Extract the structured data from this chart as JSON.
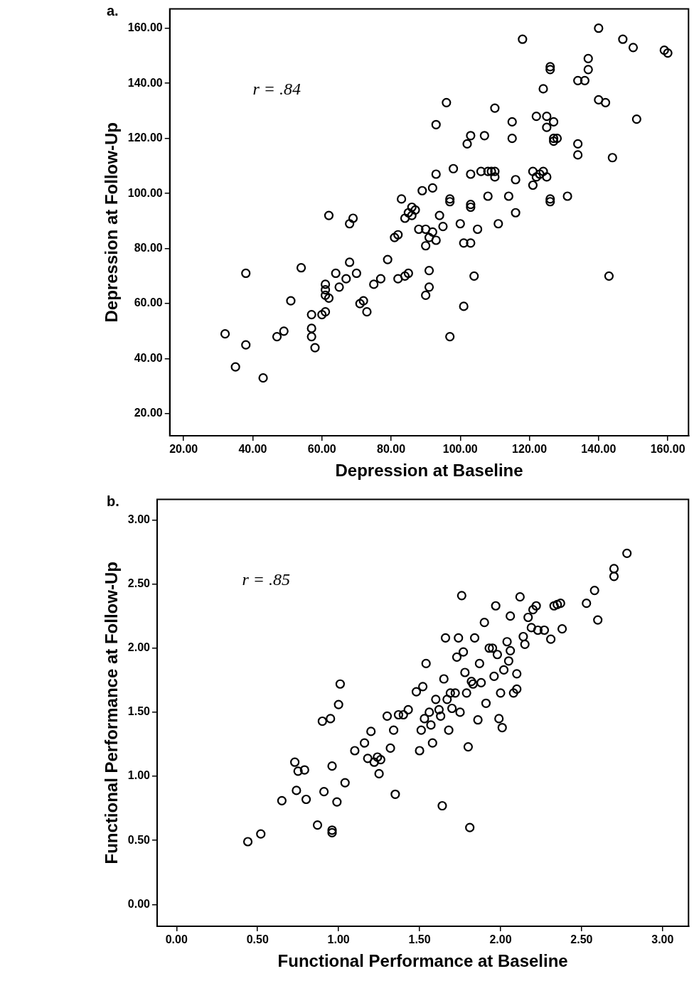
{
  "chart_data": [
    {
      "type": "scatter",
      "title": "a.",
      "xlabel": "Depression at Baseline",
      "ylabel": "Depression at Follow-Up",
      "annotations": [
        "r = .84"
      ],
      "grid": false,
      "legend": false,
      "marker": "circle",
      "xlim": [
        16,
        166
      ],
      "ylim": [
        12,
        167
      ],
      "xticks": [
        {
          "value": 20,
          "label": "20.00"
        },
        {
          "value": 40,
          "label": "40.00"
        },
        {
          "value": 60,
          "label": "60.00"
        },
        {
          "value": 80,
          "label": "80.00"
        },
        {
          "value": 100,
          "label": "100.00"
        },
        {
          "value": 120,
          "label": "120.00"
        },
        {
          "value": 140,
          "label": "140.00"
        },
        {
          "value": 160,
          "label": "160.00"
        }
      ],
      "yticks": [
        {
          "value": 20,
          "label": "20.00"
        },
        {
          "value": 40,
          "label": "40.00"
        },
        {
          "value": 60,
          "label": "60.00"
        },
        {
          "value": 80,
          "label": "80.00"
        },
        {
          "value": 100,
          "label": "100.00"
        },
        {
          "value": 120,
          "label": "120.00"
        },
        {
          "value": 140,
          "label": "140.00"
        },
        {
          "value": 160,
          "label": "160.00"
        }
      ],
      "series": [
        {
          "color": "#000000",
          "x": [
            32,
            35,
            38,
            38,
            43,
            47,
            49,
            51,
            54,
            57,
            57,
            57,
            58,
            60,
            61,
            61,
            61,
            61,
            62,
            62,
            64,
            65,
            67,
            68,
            68,
            69,
            70,
            71,
            72,
            73,
            75,
            77,
            79,
            81,
            82,
            82,
            83,
            84,
            84,
            85,
            85,
            86,
            86,
            87,
            88,
            89,
            90,
            90,
            90,
            91,
            91,
            91,
            92,
            92,
            93,
            93,
            93,
            94,
            95,
            96,
            97,
            97,
            97,
            98,
            100,
            101,
            101,
            102,
            103,
            103,
            103,
            103,
            103,
            104,
            105,
            106,
            107,
            108,
            108,
            109,
            110,
            110,
            110,
            111,
            114,
            115,
            115,
            116,
            116,
            118,
            121,
            121,
            122,
            122,
            123,
            124,
            124,
            125,
            125,
            125,
            126,
            126,
            126,
            126,
            127,
            127,
            127,
            128,
            131,
            134,
            134,
            134,
            136,
            137,
            137,
            140,
            140,
            142,
            143,
            144,
            147,
            150,
            151,
            159,
            160
          ],
          "values": [
            49,
            37,
            45,
            71,
            33,
            48,
            50,
            61,
            73,
            56,
            51,
            48,
            44,
            56,
            57,
            67,
            65,
            63,
            62,
            92,
            71,
            66,
            69,
            89,
            75,
            91,
            71,
            60,
            61,
            57,
            67,
            69,
            76,
            84,
            85,
            69,
            98,
            70,
            91,
            71,
            93,
            92,
            95,
            94,
            87,
            101,
            63,
            81,
            87,
            66,
            72,
            84,
            86,
            102,
            83,
            125,
            107,
            92,
            88,
            133,
            48,
            97,
            98,
            109,
            89,
            59,
            82,
            118,
            82,
            95,
            96,
            107,
            121,
            70,
            87,
            108,
            121,
            99,
            108,
            108,
            108,
            131,
            106,
            89,
            99,
            126,
            120,
            93,
            105,
            156,
            103,
            108,
            106,
            128,
            107,
            108,
            138,
            128,
            124,
            106,
            146,
            145,
            97,
            98,
            126,
            120,
            119,
            120,
            99,
            141,
            118,
            114,
            141,
            149,
            145,
            160,
            134,
            133,
            70,
            113,
            156,
            153,
            127,
            152,
            151
          ]
        }
      ]
    },
    {
      "type": "scatter",
      "title": "b.",
      "xlabel": "Functional Performance at Baseline",
      "ylabel": "Functional Performance at Follow-Up",
      "annotations": [
        "r = .85"
      ],
      "grid": false,
      "legend": false,
      "marker": "circle",
      "xlim": [
        -0.12,
        3.16
      ],
      "ylim": [
        -0.17,
        3.16
      ],
      "xticks": [
        {
          "value": 0,
          "label": "0.00"
        },
        {
          "value": 0.5,
          "label": "0.50"
        },
        {
          "value": 1,
          "label": "1.00"
        },
        {
          "value": 1.5,
          "label": "1.50"
        },
        {
          "value": 2,
          "label": "2.00"
        },
        {
          "value": 2.5,
          "label": "2.50"
        },
        {
          "value": 3,
          "label": "3.00"
        }
      ],
      "yticks": [
        {
          "value": 0,
          "label": "0.00"
        },
        {
          "value": 0.5,
          "label": "0.50"
        },
        {
          "value": 1,
          "label": "1.00"
        },
        {
          "value": 1.5,
          "label": "1.50"
        },
        {
          "value": 2,
          "label": "2.00"
        },
        {
          "value": 2.5,
          "label": "2.50"
        },
        {
          "value": 3,
          "label": "3.00"
        }
      ],
      "series": [
        {
          "color": "#000000",
          "x": [
            0.44,
            0.52,
            0.65,
            0.73,
            0.74,
            0.75,
            0.79,
            0.8,
            0.87,
            0.9,
            0.91,
            0.95,
            0.96,
            0.96,
            0.96,
            0.99,
            1.0,
            1.01,
            1.04,
            1.1,
            1.16,
            1.18,
            1.2,
            1.22,
            1.24,
            1.25,
            1.26,
            1.3,
            1.32,
            1.34,
            1.35,
            1.37,
            1.4,
            1.43,
            1.48,
            1.5,
            1.51,
            1.52,
            1.53,
            1.54,
            1.56,
            1.57,
            1.58,
            1.6,
            1.62,
            1.63,
            1.64,
            1.65,
            1.66,
            1.67,
            1.68,
            1.69,
            1.7,
            1.72,
            1.73,
            1.74,
            1.75,
            1.76,
            1.77,
            1.78,
            1.79,
            1.8,
            1.81,
            1.82,
            1.83,
            1.84,
            1.86,
            1.87,
            1.88,
            1.9,
            1.91,
            1.93,
            1.95,
            1.96,
            1.97,
            1.98,
            1.99,
            2.0,
            2.01,
            2.02,
            2.04,
            2.05,
            2.06,
            2.06,
            2.08,
            2.1,
            2.1,
            2.12,
            2.14,
            2.15,
            2.17,
            2.19,
            2.2,
            2.22,
            2.23,
            2.27,
            2.31,
            2.33,
            2.35,
            2.37,
            2.38,
            2.53,
            2.58,
            2.6,
            2.7,
            2.7,
            2.78
          ],
          "values": [
            0.49,
            0.55,
            0.81,
            1.11,
            0.89,
            1.04,
            1.05,
            0.82,
            0.62,
            1.43,
            0.88,
            1.45,
            1.08,
            0.58,
            0.56,
            0.8,
            1.56,
            1.72,
            0.95,
            1.2,
            1.26,
            1.14,
            1.35,
            1.11,
            1.15,
            1.02,
            1.13,
            1.47,
            1.22,
            1.36,
            0.86,
            1.48,
            1.48,
            1.52,
            1.66,
            1.2,
            1.36,
            1.7,
            1.45,
            1.88,
            1.5,
            1.4,
            1.26,
            1.6,
            1.52,
            1.47,
            0.77,
            1.76,
            2.08,
            1.6,
            1.36,
            1.65,
            1.53,
            1.65,
            1.93,
            2.08,
            1.5,
            2.41,
            1.97,
            1.81,
            1.65,
            1.23,
            0.6,
            1.74,
            1.72,
            2.08,
            1.44,
            1.88,
            1.73,
            2.2,
            1.57,
            2.0,
            2.0,
            1.78,
            2.33,
            1.95,
            1.45,
            1.65,
            1.38,
            1.83,
            2.05,
            1.9,
            1.98,
            2.25,
            1.65,
            1.68,
            1.8,
            2.4,
            2.09,
            2.03,
            2.24,
            2.16,
            2.3,
            2.33,
            2.14,
            2.14,
            2.07,
            2.33,
            2.34,
            2.35,
            2.15,
            2.35,
            2.45,
            2.22,
            2.62,
            2.56,
            2.74
          ]
        }
      ]
    }
  ]
}
